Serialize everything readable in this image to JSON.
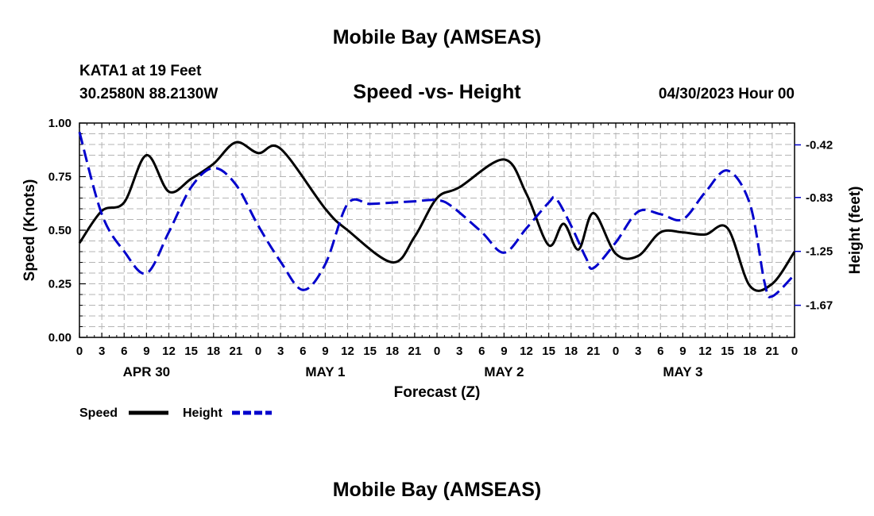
{
  "page_title": "Mobile Bay (AMSEAS)",
  "footer_title": "Mobile Bay (AMSEAS)",
  "station": "KATA1 at 19 Feet",
  "coords": "30.2580N  88.2130W",
  "datetime": "04/30/2023 Hour 00",
  "chart_data": {
    "type": "line",
    "title": "Speed -vs- Height",
    "xlabel": "Forecast (Z)",
    "ylabel": "Speed (Knots)",
    "y2label": "Height (feet)",
    "xlim": [
      0,
      96
    ],
    "ylim": [
      0,
      1.0
    ],
    "y2lim": [
      -1.92,
      -0.25
    ],
    "y_ticks": [
      0.0,
      0.25,
      0.5,
      0.75,
      1.0
    ],
    "y_tick_labels": [
      "0.00",
      "0.25",
      "0.50",
      "0.75",
      "1.00"
    ],
    "y2_ticks": [
      -0.42,
      -0.83,
      -1.25,
      -1.67
    ],
    "y2_tick_labels": [
      "-0.42",
      "-0.83",
      "-1.25",
      "-1.67"
    ],
    "x_tick_labels": [
      "0",
      "3",
      "6",
      "9",
      "12",
      "15",
      "18",
      "21",
      "0",
      "3",
      "6",
      "9",
      "12",
      "15",
      "18",
      "21",
      "0",
      "3",
      "6",
      "9",
      "12",
      "15",
      "18",
      "21",
      "0",
      "3",
      "6",
      "9",
      "12",
      "15",
      "18",
      "21",
      "0"
    ],
    "day_labels": [
      {
        "label": "APR 30",
        "x": 9
      },
      {
        "label": "MAY 1",
        "x": 33
      },
      {
        "label": "MAY 2",
        "x": 57
      },
      {
        "label": "MAY 3",
        "x": 81
      }
    ],
    "grid": true,
    "legend": [
      {
        "name": "Speed",
        "color": "#000000",
        "style": "solid"
      },
      {
        "name": "Height",
        "color": "#0000cc",
        "style": "dashed"
      }
    ],
    "series": [
      {
        "name": "Speed",
        "axis": "left",
        "color": "#000000",
        "x": [
          0,
          3,
          6,
          9,
          12,
          15,
          18,
          21,
          24,
          27,
          33,
          36,
          42,
          45,
          48,
          51,
          57,
          60,
          63,
          65,
          67,
          69,
          72,
          75,
          78,
          81,
          84,
          87,
          90,
          93,
          96
        ],
        "y": [
          0.44,
          0.59,
          0.63,
          0.85,
          0.68,
          0.74,
          0.81,
          0.91,
          0.86,
          0.88,
          0.6,
          0.5,
          0.35,
          0.47,
          0.65,
          0.7,
          0.83,
          0.67,
          0.43,
          0.53,
          0.41,
          0.58,
          0.39,
          0.38,
          0.49,
          0.49,
          0.48,
          0.51,
          0.24,
          0.25,
          0.4
        ]
      },
      {
        "name": "Height",
        "axis": "right",
        "color": "#0000cc",
        "x": [
          0,
          3,
          6,
          9,
          12,
          15,
          18,
          21,
          24,
          27,
          30,
          33,
          36,
          39,
          42,
          45,
          48,
          50,
          54,
          57,
          60,
          63,
          64,
          66,
          68,
          69,
          72,
          75,
          78,
          81,
          84,
          87,
          90,
          92,
          93,
          96
        ],
        "y": [
          -0.32,
          -0.96,
          -1.25,
          -1.42,
          -1.1,
          -0.75,
          -0.6,
          -0.73,
          -1.05,
          -1.33,
          -1.55,
          -1.35,
          -0.88,
          -0.88,
          -0.87,
          -0.86,
          -0.85,
          -0.9,
          -1.1,
          -1.26,
          -1.07,
          -0.87,
          -0.84,
          -1.05,
          -1.3,
          -1.38,
          -1.18,
          -0.94,
          -0.96,
          -1.0,
          -0.79,
          -0.62,
          -0.88,
          -1.5,
          -1.6,
          -1.43
        ]
      }
    ]
  }
}
